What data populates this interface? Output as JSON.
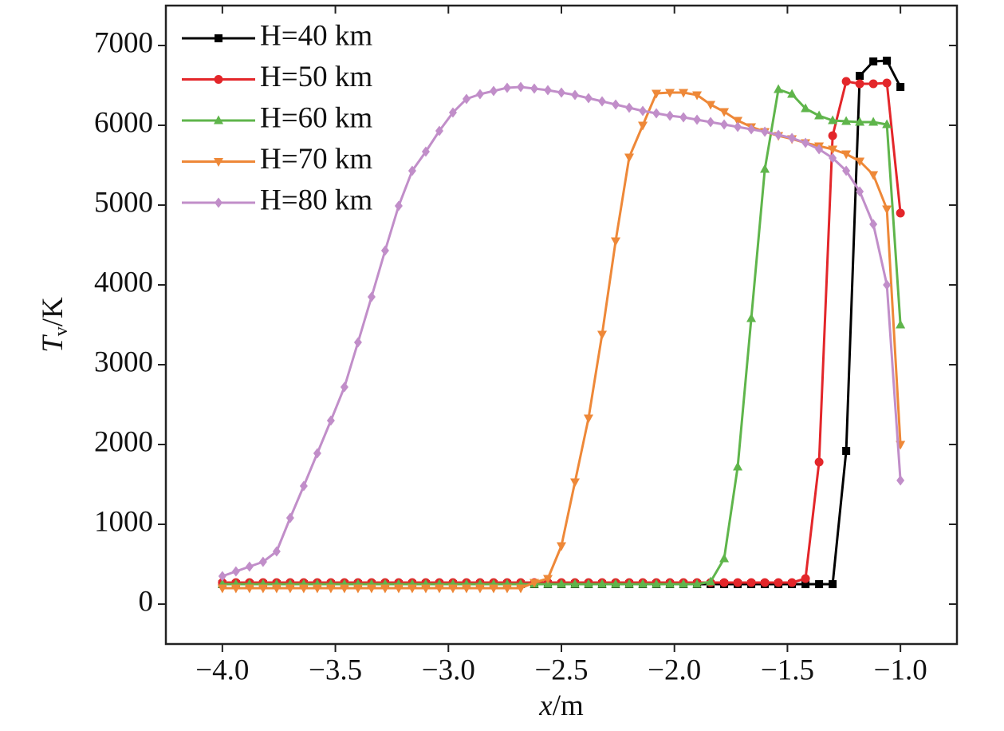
{
  "chart_data": {
    "type": "line",
    "xlabel": {
      "symbol": "x",
      "unit": "/m"
    },
    "ylabel": {
      "symbol": "T",
      "subscript": "v",
      "unit": "/K"
    },
    "x": [
      -4,
      -3.94,
      -3.88,
      -3.82,
      -3.76,
      -3.7,
      -3.64,
      -3.58,
      -3.52,
      -3.46,
      -3.4,
      -3.34,
      -3.28,
      -3.22,
      -3.16,
      -3.1,
      -3.04,
      -2.98,
      -2.92,
      -2.86,
      -2.8,
      -2.74,
      -2.68,
      -2.62,
      -2.56,
      -2.5,
      -2.44,
      -2.38,
      -2.32,
      -2.26,
      -2.2,
      -2.14,
      -2.08,
      -2.02,
      -1.96,
      -1.9,
      -1.84,
      -1.78,
      -1.72,
      -1.66,
      -1.6,
      -1.54,
      -1.48,
      -1.42,
      -1.36,
      -1.3,
      -1.24,
      -1.18,
      -1.12,
      -1.06,
      -1.0
    ],
    "series": [
      {
        "name": "H=40 km",
        "color": "#000000",
        "marker": "square",
        "values": [
          250,
          250,
          250,
          250,
          250,
          250,
          250,
          250,
          250,
          250,
          250,
          250,
          250,
          250,
          250,
          250,
          250,
          250,
          250,
          250,
          250,
          250,
          250,
          250,
          250,
          250,
          250,
          250,
          250,
          250,
          250,
          250,
          250,
          250,
          250,
          250,
          250,
          250,
          250,
          250,
          250,
          250,
          250,
          250,
          250,
          250,
          1920,
          6620,
          6800,
          6810,
          6480
        ]
      },
      {
        "name": "H=50 km",
        "color": "#e3262a",
        "marker": "circle",
        "values": [
          270,
          270,
          270,
          270,
          270,
          270,
          270,
          270,
          270,
          270,
          270,
          270,
          270,
          270,
          270,
          270,
          270,
          270,
          270,
          270,
          270,
          270,
          270,
          270,
          270,
          270,
          270,
          270,
          270,
          270,
          270,
          270,
          270,
          270,
          270,
          270,
          270,
          270,
          270,
          270,
          270,
          270,
          270,
          320,
          1780,
          5870,
          6550,
          6520,
          6520,
          6530,
          4900
        ]
      },
      {
        "name": "H=60 km",
        "color": "#5fb54b",
        "marker": "triangle-up",
        "values": [
          250,
          250,
          250,
          250,
          250,
          250,
          250,
          250,
          250,
          250,
          250,
          250,
          250,
          250,
          250,
          250,
          250,
          250,
          250,
          250,
          250,
          250,
          250,
          250,
          250,
          250,
          250,
          250,
          250,
          250,
          250,
          250,
          250,
          250,
          250,
          250,
          280,
          570,
          1720,
          3580,
          5450,
          6450,
          6390,
          6210,
          6120,
          6060,
          6050,
          6040,
          6040,
          6010,
          3500
        ]
      },
      {
        "name": "H=70 km",
        "color": "#ee8838",
        "marker": "triangle-down",
        "values": [
          200,
          200,
          200,
          200,
          200,
          200,
          200,
          200,
          200,
          200,
          200,
          200,
          200,
          200,
          200,
          200,
          200,
          200,
          200,
          200,
          200,
          200,
          200,
          270,
          320,
          730,
          1530,
          2330,
          3380,
          4550,
          5600,
          6000,
          6400,
          6410,
          6410,
          6380,
          6260,
          6170,
          6060,
          5980,
          5920,
          5870,
          5830,
          5780,
          5740,
          5700,
          5640,
          5550,
          5380,
          4950,
          2000
        ]
      },
      {
        "name": "H=80 km",
        "color": "#c18ec9",
        "marker": "diamond",
        "values": [
          350,
          410,
          470,
          530,
          660,
          1080,
          1480,
          1890,
          2300,
          2720,
          3280,
          3850,
          4430,
          4990,
          5430,
          5670,
          5930,
          6160,
          6330,
          6390,
          6430,
          6470,
          6480,
          6460,
          6440,
          6410,
          6380,
          6340,
          6300,
          6260,
          6220,
          6180,
          6150,
          6120,
          6100,
          6070,
          6040,
          6010,
          5980,
          5950,
          5920,
          5880,
          5840,
          5780,
          5700,
          5590,
          5430,
          5170,
          4760,
          4000,
          1550
        ]
      }
    ],
    "xlim": [
      -4.25,
      -0.75
    ],
    "xticks": [
      {
        "value": -4,
        "label": "−4.0"
      },
      {
        "value": -3.5,
        "label": "−3.5"
      },
      {
        "value": -3,
        "label": "−3.0"
      },
      {
        "value": -2.5,
        "label": "−2.5"
      },
      {
        "value": -2,
        "label": "−2.0"
      },
      {
        "value": -1.5,
        "label": "−1.5"
      },
      {
        "value": -1,
        "label": "−1.0"
      }
    ],
    "ylim": [
      -500,
      7500
    ],
    "yticks": [
      0,
      1000,
      2000,
      3000,
      4000,
      5000,
      6000,
      7000
    ],
    "legend": "upper-left",
    "grid": false
  }
}
